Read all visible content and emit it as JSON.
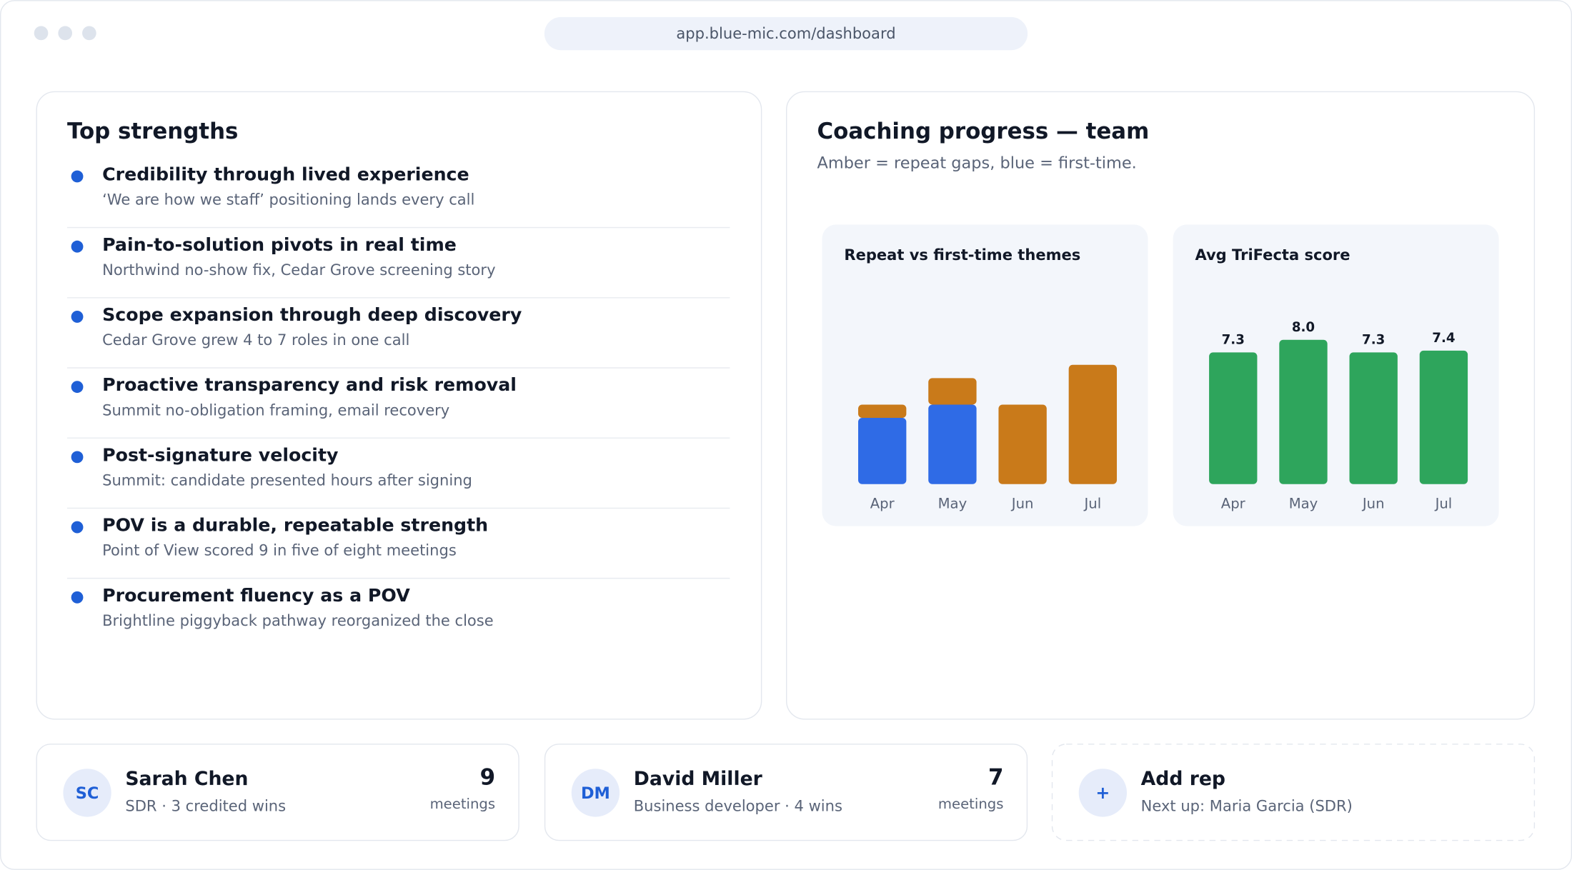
{
  "browser": {
    "url": "app.blue-mic.com/dashboard"
  },
  "strengths": {
    "title": "Top strengths",
    "items": [
      {
        "title": "Credibility through lived experience",
        "detail": "‘We are how we staff’ positioning lands every call"
      },
      {
        "title": "Pain-to-solution pivots in real time",
        "detail": "Northwind no-show fix, Cedar Grove screening story"
      },
      {
        "title": "Scope expansion through deep discovery",
        "detail": "Cedar Grove grew 4 to 7 roles in one call"
      },
      {
        "title": "Proactive transparency and risk removal",
        "detail": "Summit no-obligation framing, email recovery"
      },
      {
        "title": "Post-signature velocity",
        "detail": "Summit: candidate presented hours after signing"
      },
      {
        "title": "POV is a durable, repeatable strength",
        "detail": "Point of View scored 9 in five of eight meetings"
      },
      {
        "title": "Procurement fluency as a POV",
        "detail": "Brightline piggyback pathway reorganized the close"
      }
    ]
  },
  "coaching": {
    "title": "Coaching progress — team",
    "subtitle": "Amber = repeat gaps, blue = first-time.",
    "charts": [
      {
        "type": "stacked-bar",
        "title": "Repeat vs first-time themes",
        "categories": [
          "Apr",
          "May",
          "Jun",
          "Jul"
        ],
        "series": [
          {
            "color": "#2f6be6",
            "values": [
              5,
              6,
              0,
              0
            ]
          },
          {
            "color": "#c97a1a",
            "values": [
              1,
              2,
              6,
              9
            ]
          }
        ]
      },
      {
        "type": "bar",
        "title": "Avg TriFecta score",
        "categories": [
          "Apr",
          "May",
          "Jun",
          "Jul"
        ],
        "values": [
          7.3,
          8.0,
          7.3,
          7.4
        ],
        "value_labels": [
          "7.3",
          "8.0",
          "7.3",
          "7.4"
        ],
        "color": "#2ea55c"
      }
    ]
  },
  "reps": [
    {
      "initials": "SC",
      "name": "Sarah Chen",
      "detail": "SDR · 3 credited wins",
      "count": 9,
      "count_label": "meetings"
    },
    {
      "initials": "DM",
      "name": "David Miller",
      "detail": "Business developer · 4 wins",
      "count": 7,
      "count_label": "meetings"
    }
  ],
  "add_rep": {
    "icon": "+",
    "title": "Add rep",
    "detail": "Next up: Maria Garcia (SDR)"
  }
}
